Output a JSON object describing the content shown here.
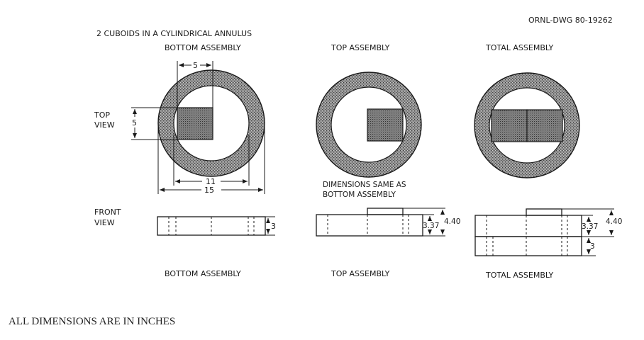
{
  "drawing_number": "ORNL-DWG 80-19262",
  "title": "2 CUBOIDS IN A CYLINDRICAL ANNULUS",
  "columns": {
    "bottom": {
      "top_label": "BOTTOM ASSEMBLY",
      "bottom_label": "BOTTOM ASSEMBLY"
    },
    "top": {
      "top_label": "TOP ASSEMBLY",
      "bottom_label": "TOP ASSEMBLY"
    },
    "total": {
      "top_label": "TOTAL ASSEMBLY",
      "bottom_label": "TOTAL ASSEMBLY"
    }
  },
  "row_labels": {
    "top_view": [
      "TOP",
      "VIEW"
    ],
    "front_view": [
      "FRONT",
      "VIEW"
    ]
  },
  "dimensions": {
    "cuboid_width": "5",
    "cuboid_height": "5",
    "inner_diameter": "11",
    "outer_diameter": "15",
    "bottom_thickness": "3",
    "top_body_height": "3.37",
    "top_total_height": "4.40",
    "total_body_height": "3.37",
    "total_total_height": "4.40",
    "total_bottom_height": "3"
  },
  "note": [
    "DIMENSIONS SAME AS",
    "BOTTOM ASSEMBLY"
  ],
  "caption": "ALL DIMENSIONS ARE IN INCHES"
}
